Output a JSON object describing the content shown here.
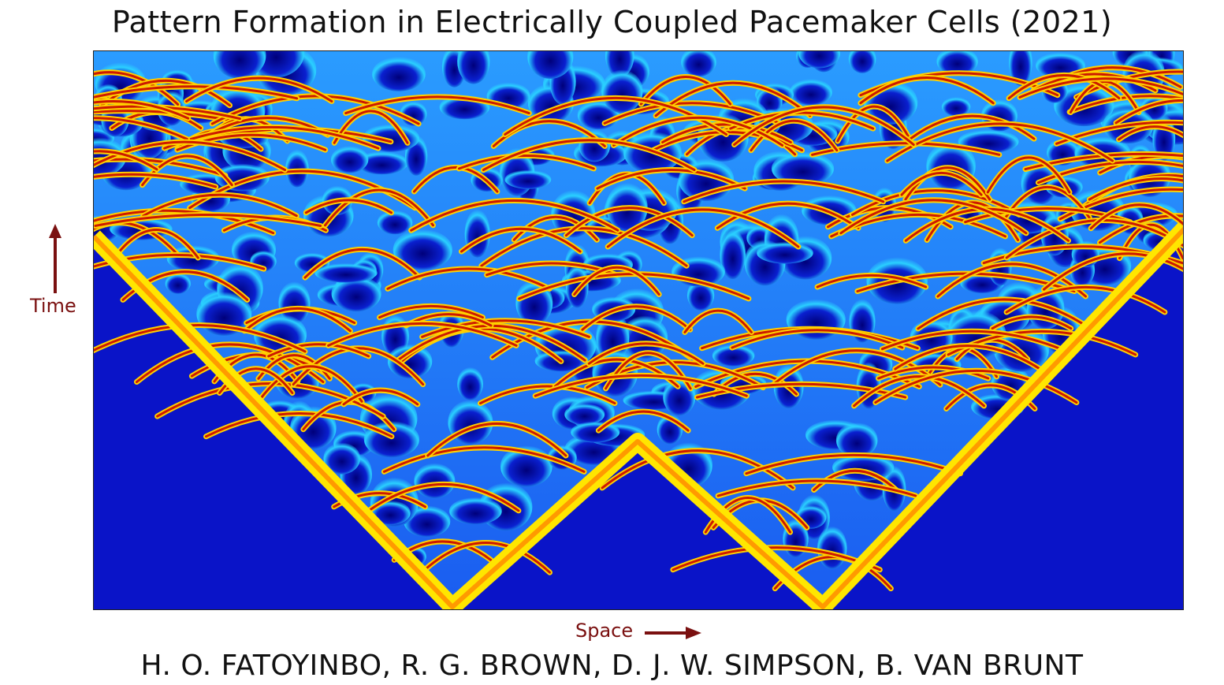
{
  "title": "Pattern Formation in Electrically Coupled Pacemaker Cells (2021)",
  "axes": {
    "time_label": "Time",
    "space_label": "Space"
  },
  "authors": "H. O. FATOYINBO, R. G. BROWN, D. J. W. SIMPSON, B. VAN BRUNT",
  "colors": {
    "background": "#0a14c8",
    "wave_red": "#cc1a00",
    "wave_yellow": "#ffe600",
    "wave_cyan": "#33e0ff",
    "label_red": "#7a1010"
  }
}
